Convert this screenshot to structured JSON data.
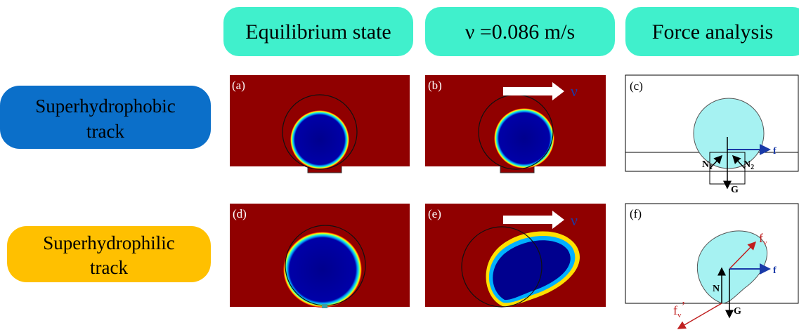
{
  "headers": [
    "Equilibrium state",
    "ν =0.086 m/s",
    "Force analysis"
  ],
  "rows": [
    {
      "label_lines": [
        "Superhydrophobic",
        "track"
      ]
    },
    {
      "label_lines": [
        "Superhydrophilic",
        "track"
      ]
    }
  ],
  "panels": [
    "(a)",
    "(b)",
    "(c)",
    "(d)",
    "(e)",
    "(f)"
  ],
  "velocity_labels": [
    "ν",
    "ν"
  ],
  "forces_c": {
    "f": "f",
    "N1": {
      "base": "N",
      "sub": "1"
    },
    "N2": {
      "base": "N",
      "sub": "2"
    },
    "G": "G"
  },
  "forces_f": {
    "fv": {
      "base": "f",
      "sub": "v"
    },
    "fv_prime": {
      "base": "f",
      "sub": "v",
      "sup": "’"
    },
    "f": "f",
    "N": "N",
    "G": "G"
  }
}
